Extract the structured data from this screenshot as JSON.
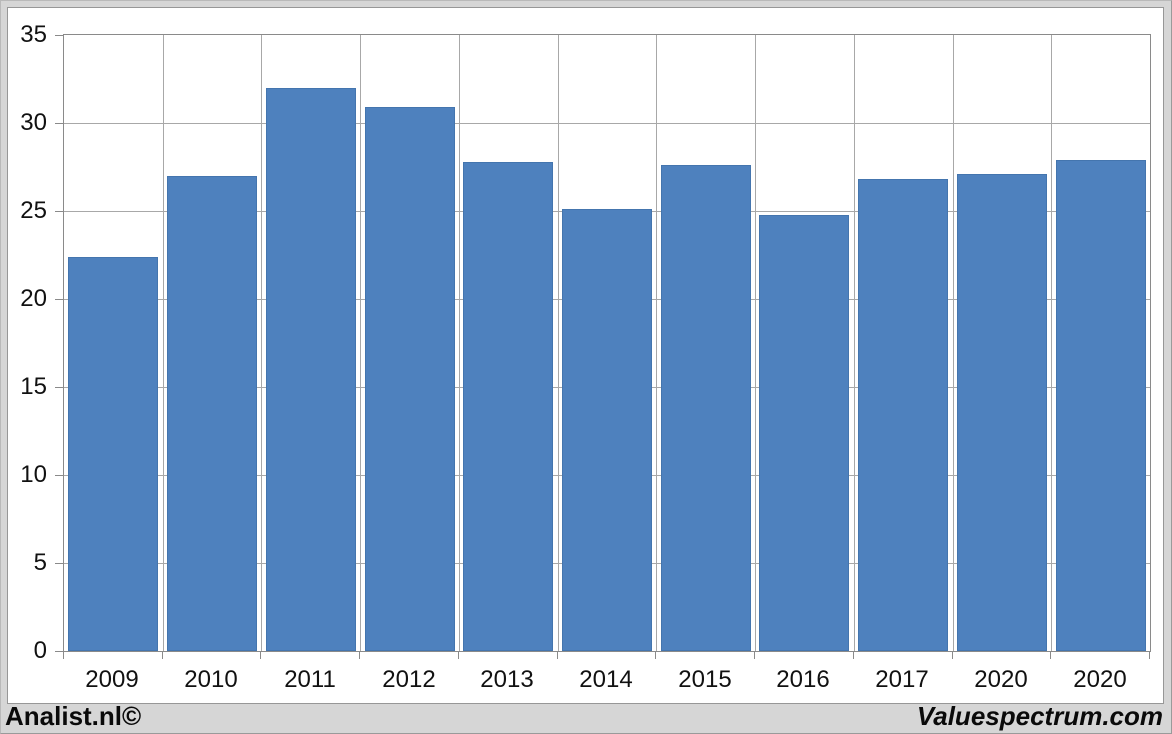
{
  "footer": {
    "left": "Analist.nl©",
    "right": "Valuespectrum.com"
  },
  "chart_data": {
    "type": "bar",
    "title": "",
    "xlabel": "",
    "ylabel": "",
    "categories": [
      "2009",
      "2010",
      "2011",
      "2012",
      "2013",
      "2014",
      "2015",
      "2016",
      "2017",
      "2020",
      "2020"
    ],
    "values": [
      22.4,
      27.0,
      32.0,
      30.9,
      27.8,
      25.1,
      27.6,
      24.8,
      26.8,
      27.1,
      27.9
    ],
    "ylim": [
      0,
      35
    ],
    "yticks": [
      0,
      5,
      10,
      15,
      20,
      25,
      30,
      35
    ],
    "grid": true,
    "legend": "none",
    "bar_color": "#4e81be",
    "bar_border_color": "#4475ae",
    "gridline_color": "#a8a8a8",
    "axis_border_color": "#8a8a8a",
    "panel_background": "#ffffff",
    "page_background": "#d6d6d6"
  }
}
